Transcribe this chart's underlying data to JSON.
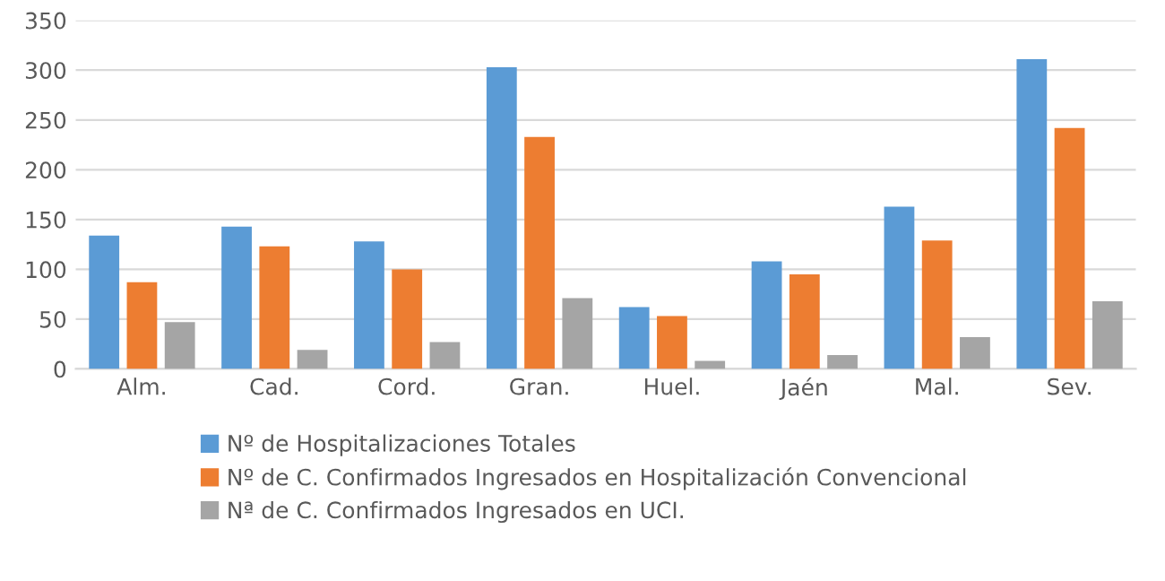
{
  "chart_data": {
    "type": "bar",
    "categories": [
      "Alm.",
      "Cad.",
      "Cord.",
      "Gran.",
      "Huel.",
      "Jaén",
      "Mal.",
      "Sev."
    ],
    "series": [
      {
        "name": "Nº de Hospitalizaciones Totales",
        "color": "#5b9bd5",
        "values": [
          134,
          143,
          128,
          303,
          62,
          108,
          163,
          311
        ]
      },
      {
        "name": "Nº de C. Confirmados Ingresados en Hospitalización Convencional",
        "color": "#ed7d31",
        "values": [
          87,
          123,
          100,
          233,
          53,
          95,
          129,
          242
        ]
      },
      {
        "name": "Nª de C. Confirmados Ingresados en UCI.",
        "color": "#a5a5a5",
        "values": [
          47,
          19,
          27,
          71,
          8,
          14,
          32,
          68
        ]
      }
    ],
    "ylim": [
      0,
      350
    ],
    "yticks": [
      0,
      50,
      100,
      150,
      200,
      250,
      300,
      350
    ],
    "grid": "y",
    "legend": "bottom"
  }
}
